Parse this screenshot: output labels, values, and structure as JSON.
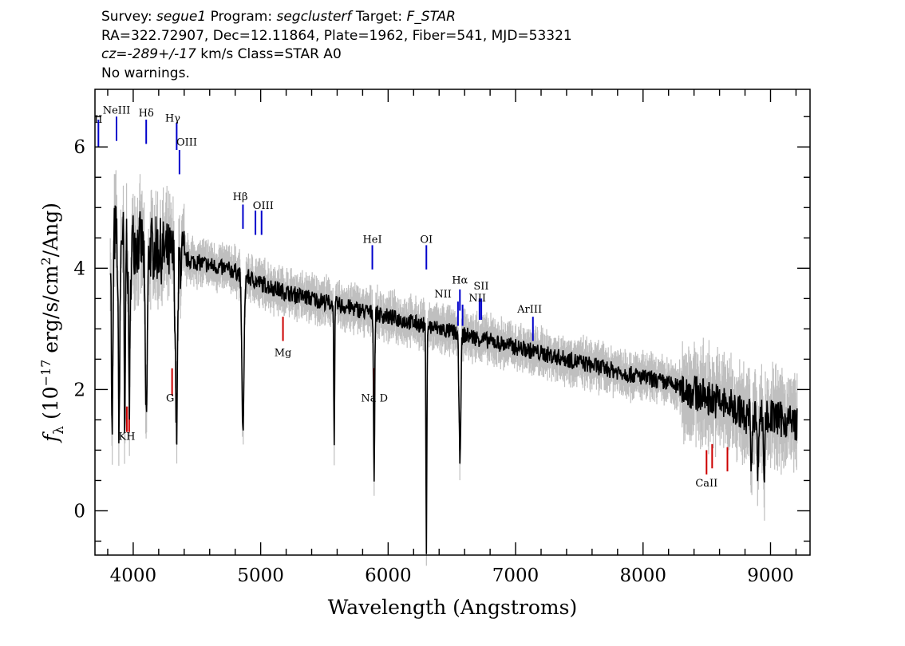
{
  "header": {
    "survey_label": "Survey:",
    "survey_value": "segue1",
    "program_label": "Program:",
    "program_value": "segclusterf",
    "target_label": "Target:",
    "target_value": "F_STAR",
    "line2": "RA=322.72907, Dec=12.11864, Plate=1962, Fiber=541, MJD=53321",
    "cz_label": "cz=",
    "cz_value": "-289+/-17",
    "cz_rest": " km/s Class=STAR A0",
    "warnings": "No warnings."
  },
  "chart_data": {
    "type": "line",
    "xlabel": "Wavelength (Angstroms)",
    "ylabel_base": "f",
    "ylabel_sub": "λ",
    "ylabel_open": " (10",
    "ylabel_exp": "−17",
    "ylabel_mid": " erg/s/cm",
    "ylabel_exp2": "2",
    "ylabel_close": "/Ang)",
    "xlim": [
      3700,
      9310
    ],
    "ylim": [
      -0.73,
      6.95
    ],
    "xticks": [
      4000,
      5000,
      6000,
      7000,
      8000,
      9000
    ],
    "yticks": [
      0,
      2,
      4,
      6
    ],
    "continuum": [
      [
        3830,
        4.55
      ],
      [
        3900,
        4.6
      ],
      [
        4000,
        4.45
      ],
      [
        4100,
        4.35
      ],
      [
        4200,
        4.3
      ],
      [
        4300,
        4.2
      ],
      [
        4400,
        4.15
      ],
      [
        4500,
        4.1
      ],
      [
        4600,
        4.05
      ],
      [
        4700,
        4.0
      ],
      [
        4800,
        3.95
      ],
      [
        5000,
        3.75
      ],
      [
        5200,
        3.6
      ],
      [
        5400,
        3.5
      ],
      [
        5600,
        3.4
      ],
      [
        5800,
        3.3
      ],
      [
        6000,
        3.2
      ],
      [
        6200,
        3.1
      ],
      [
        6400,
        3.0
      ],
      [
        6600,
        2.9
      ],
      [
        6800,
        2.8
      ],
      [
        7000,
        2.7
      ],
      [
        7200,
        2.6
      ],
      [
        7400,
        2.5
      ],
      [
        7600,
        2.4
      ],
      [
        7800,
        2.3
      ],
      [
        8000,
        2.2
      ],
      [
        8200,
        2.1
      ],
      [
        8400,
        1.95
      ],
      [
        8600,
        1.8
      ],
      [
        8800,
        1.6
      ],
      [
        9000,
        1.55
      ],
      [
        9200,
        1.45
      ]
    ],
    "absorption": [
      [
        3835,
        1.0,
        8
      ],
      [
        3889,
        1.5,
        10
      ],
      [
        3934,
        0.9,
        6
      ],
      [
        3970,
        1.9,
        10
      ],
      [
        4102,
        1.5,
        12
      ],
      [
        4340,
        1.4,
        12
      ],
      [
        4861,
        1.3,
        12
      ],
      [
        5577,
        1.2,
        5
      ],
      [
        5890,
        0.5,
        6
      ],
      [
        6300,
        -0.6,
        5
      ],
      [
        6563,
        0.9,
        10
      ],
      [
        8800,
        1.2,
        6
      ],
      [
        8850,
        0.6,
        6
      ],
      [
        8900,
        0.5,
        6
      ],
      [
        8950,
        0.4,
        6
      ]
    ],
    "lines": [
      {
        "label": "II",
        "x": 3727,
        "y0": 6.0,
        "y1": 6.45,
        "color": "#0000cc",
        "lx": 3727,
        "ly": 6.4
      },
      {
        "label": "NeIII",
        "x": 3869,
        "y0": 6.1,
        "y1": 6.5,
        "color": "#0000cc",
        "lx": 3869,
        "ly": 6.55
      },
      {
        "label": "Hδ",
        "x": 4102,
        "y0": 6.05,
        "y1": 6.45,
        "color": "#0000cc",
        "lx": 4102,
        "ly": 6.5
      },
      {
        "label": "Hγ",
        "x": 4341,
        "y0": 5.95,
        "y1": 6.4,
        "color": "#0000cc",
        "lx": 4310,
        "ly": 6.42
      },
      {
        "label": "OIII",
        "x": 4363,
        "y0": 5.55,
        "y1": 5.95,
        "color": "#0000cc",
        "lx": 4420,
        "ly": 6.02
      },
      {
        "label": "Hβ",
        "x": 4861,
        "y0": 4.65,
        "y1": 5.05,
        "color": "#0000cc",
        "lx": 4840,
        "ly": 5.12
      },
      {
        "label": "OIII",
        "x": 4959,
        "y0": 4.55,
        "y1": 4.95,
        "color": "#0000cc",
        "lx": 5020,
        "ly": 4.98
      },
      {
        "label": "",
        "x": 5007,
        "y0": 4.55,
        "y1": 4.95,
        "color": "#0000cc",
        "lx": 5007,
        "ly": 4.98
      },
      {
        "label": "Mg",
        "x": 5175,
        "y0": 2.8,
        "y1": 3.2,
        "color": "#cc0000",
        "lx": 5175,
        "ly": 2.55
      },
      {
        "label": "G",
        "x": 4305,
        "y0": 1.9,
        "y1": 2.35,
        "color": "#cc0000",
        "lx": 4290,
        "ly": 1.8
      },
      {
        "label": "KH",
        "x": 3950,
        "y0": 1.3,
        "y1": 1.72,
        "color": "#cc0000",
        "lx": 3950,
        "ly": 1.17
      },
      {
        "label": "",
        "x": 3968,
        "y0": 1.3,
        "y1": 1.72,
        "color": "#cc0000",
        "lx": 3968,
        "ly": 1.17
      },
      {
        "label": "HeI",
        "x": 5876,
        "y0": 3.98,
        "y1": 4.38,
        "color": "#0000cc",
        "lx": 5876,
        "ly": 4.42
      },
      {
        "label": "Na D",
        "x": 5893,
        "y0": 1.9,
        "y1": 2.35,
        "color": "#cc0000",
        "lx": 5893,
        "ly": 1.8
      },
      {
        "label": "OI",
        "x": 6300,
        "y0": 3.98,
        "y1": 4.38,
        "color": "#0000cc",
        "lx": 6300,
        "ly": 4.42
      },
      {
        "label": "NII",
        "x": 6548,
        "y0": 3.05,
        "y1": 3.45,
        "color": "#0000cc",
        "lx": 6430,
        "ly": 3.52
      },
      {
        "label": "Hα",
        "x": 6563,
        "y0": 3.3,
        "y1": 3.65,
        "color": "#0000cc",
        "lx": 6563,
        "ly": 3.75
      },
      {
        "label": "",
        "x": 6584,
        "y0": 3.05,
        "y1": 3.4,
        "color": "#0000cc",
        "lx": 6584,
        "ly": 3.4
      },
      {
        "label": "SII",
        "x": 6717,
        "y0": 3.15,
        "y1": 3.5,
        "color": "#0000cc",
        "lx": 6730,
        "ly": 3.65
      },
      {
        "label": "NII",
        "x": 6731,
        "y0": 3.15,
        "y1": 3.5,
        "color": "#0000cc",
        "lx": 6700,
        "ly": 3.45
      },
      {
        "label": "ArIII",
        "x": 7136,
        "y0": 2.8,
        "y1": 3.2,
        "color": "#0000cc",
        "lx": 7110,
        "ly": 3.27
      },
      {
        "label": "CaII",
        "x": 8498,
        "y0": 0.6,
        "y1": 1.0,
        "color": "#cc0000",
        "lx": 8498,
        "ly": 0.4
      },
      {
        "label": "",
        "x": 8542,
        "y0": 0.7,
        "y1": 1.1,
        "color": "#cc0000",
        "lx": 8542,
        "ly": 0.4
      },
      {
        "label": "",
        "x": 8662,
        "y0": 0.65,
        "y1": 1.05,
        "color": "#cc0000",
        "lx": 8662,
        "ly": 0.4
      }
    ],
    "colors": {
      "spectrum": "#000000",
      "error": "#bfbfbf",
      "emission": "#0000cc",
      "absorption": "#cc0000"
    }
  }
}
